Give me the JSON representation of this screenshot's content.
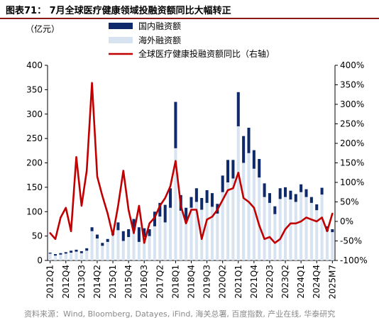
{
  "figure": {
    "title": "图表71： 7月全球医疗健康领域投融资额同比大幅转正",
    "source": "资料来源：Wind, Bloomberg, Datayes, iFind, 海关总署, 百度指数, 产业在线, 华泰研究"
  },
  "chart_data": {
    "type": "bar",
    "stacked": true,
    "unit_left": "（亿元）",
    "x": [
      "2012Q1",
      "2012Q2",
      "2012Q3",
      "2012Q4",
      "2013Q1",
      "2013Q2",
      "2013Q3",
      "2013Q4",
      "2014Q1",
      "2014Q2",
      "2014Q3",
      "2014Q4",
      "2015Q1",
      "2015Q2",
      "2015Q3",
      "2015Q4",
      "2016Q1",
      "2016Q2",
      "2016Q3",
      "2016Q4",
      "2017Q1",
      "2017Q2",
      "2017Q3",
      "2017Q4",
      "2018Q1",
      "2018Q2",
      "2018Q3",
      "2018Q4",
      "2019Q1",
      "2019Q2",
      "2019Q3",
      "2019Q4",
      "2020Q1",
      "2020Q2",
      "2020Q3",
      "2020Q4",
      "2021Q1",
      "2021Q2",
      "2021Q3",
      "2021Q4",
      "2022Q1",
      "2022Q2",
      "2022Q3",
      "2022Q4",
      "2023Q1",
      "2023Q2",
      "2023Q3",
      "2023Q4",
      "2024Q1",
      "2024Q2",
      "2024Q3",
      "2024Q4",
      "2025Q1",
      "2025Q2",
      "2025M7"
    ],
    "xtick_labels": [
      "2012Q1",
      "2012Q4",
      "2013Q3",
      "2014Q2",
      "2015Q1",
      "2015Q4",
      "2016Q3",
      "2017Q2",
      "2018Q1",
      "2018Q4",
      "2019Q3",
      "2020Q2",
      "2021Q1",
      "2021Q4",
      "2022Q3",
      "2023Q2",
      "2024Q1",
      "2024Q4",
      "2025M7"
    ],
    "xtick_index": [
      0,
      3,
      6,
      9,
      12,
      15,
      18,
      21,
      24,
      27,
      30,
      33,
      36,
      39,
      42,
      45,
      48,
      51,
      54
    ],
    "y_left": {
      "ylim": [
        0,
        400
      ],
      "ticks": [
        0,
        50,
        100,
        150,
        200,
        250,
        300,
        350,
        400
      ]
    },
    "y_right": {
      "ylim": [
        -100,
        400
      ],
      "ticks": [
        -100,
        -50,
        0,
        50,
        100,
        150,
        200,
        250,
        300,
        350,
        400
      ],
      "tick_labels": [
        "-100%",
        "-50%",
        "0%",
        "50%",
        "100%",
        "150%",
        "200%",
        "250%",
        "300%",
        "350%",
        "400%"
      ]
    },
    "series": [
      {
        "name": "国内融资额",
        "kind": "bar",
        "color": "#0f2a6b",
        "values": [
          2,
          3,
          3,
          3,
          4,
          4,
          4,
          5,
          8,
          8,
          6,
          6,
          8,
          16,
          20,
          16,
          25,
          30,
          18,
          14,
          30,
          28,
          36,
          40,
          95,
          32,
          30,
          22,
          28,
          24,
          26,
          28,
          20,
          34,
          46,
          38,
          70,
          55,
          52,
          38,
          38,
          28,
          20,
          16,
          22,
          20,
          18,
          16,
          16,
          16,
          12,
          12,
          14,
          10,
          6
        ]
      },
      {
        "name": "海外融资额",
        "kind": "bar",
        "color": "#d8e3f1",
        "values": [
          14,
          10,
          12,
          14,
          16,
          18,
          15,
          20,
          60,
          45,
          30,
          38,
          52,
          62,
          40,
          48,
          60,
          38,
          48,
          50,
          70,
          90,
          78,
          108,
          230,
          102,
          78,
          108,
          120,
          104,
          118,
          110,
          96,
          140,
          160,
          168,
          275,
          200,
          220,
          188,
          170,
          130,
          118,
          95,
          126,
          130,
          125,
          120,
          140,
          130,
          118,
          103,
          135,
          60,
          58
        ]
      },
      {
        "name": "全球医疗健康投融资额同比（右轴）",
        "kind": "line",
        "color": "#c00000",
        "axis": "right",
        "values": [
          -30,
          -45,
          10,
          35,
          -25,
          165,
          40,
          130,
          355,
          115,
          65,
          20,
          -35,
          40,
          130,
          30,
          -30,
          40,
          -55,
          -5,
          10,
          40,
          60,
          90,
          155,
          40,
          -5,
          30,
          30,
          -45,
          5,
          12,
          30,
          55,
          80,
          85,
          125,
          60,
          50,
          35,
          -10,
          -45,
          -40,
          -55,
          -45,
          -20,
          -5,
          -5,
          0,
          10,
          5,
          0,
          10,
          -25,
          20
        ]
      }
    ],
    "legend_position": "top-center"
  }
}
